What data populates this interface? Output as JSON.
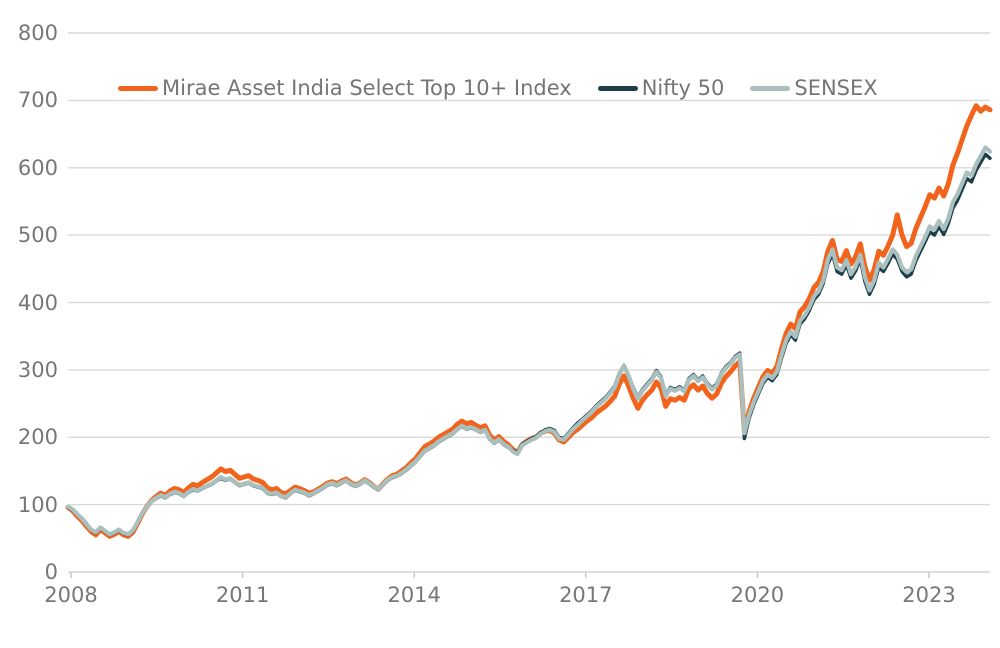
{
  "chart_data": {
    "type": "line",
    "title": "",
    "xlabel": "",
    "ylabel": "",
    "x_start_year": 2008,
    "x_interval": "monthly",
    "x_tick_years": [
      "2008",
      "2011",
      "2014",
      "2017",
      "2020",
      "2023"
    ],
    "y_ticks": [
      "0",
      "100",
      "200",
      "300",
      "400",
      "500",
      "600",
      "700",
      "800"
    ],
    "ylim": [
      0,
      800
    ],
    "grid": "horizontal-only",
    "legend_position": "top-left",
    "colors": {
      "background": "#ffffff",
      "gridline": "#d9d9d9",
      "axis_line": "#d4d4d4",
      "tick_mark": "#c9c9c9",
      "axis_label_text": "#777777",
      "legend_text": "#757575"
    },
    "series": [
      {
        "name": "Mirae Asset India Select Top 10+ Index",
        "color": "#F2641C",
        "stroke_width": 5,
        "values": [
          96,
          91,
          83,
          76,
          68,
          60,
          55,
          63,
          58,
          53,
          56,
          60,
          55,
          53,
          59,
          72,
          86,
          97,
          106,
          112,
          117,
          114,
          120,
          124,
          122,
          118,
          125,
          130,
          128,
          133,
          137,
          141,
          147,
          153,
          149,
          151,
          145,
          139,
          141,
          143,
          138,
          136,
          133,
          125,
          122,
          124,
          118,
          116,
          121,
          126,
          124,
          121,
          117,
          119,
          123,
          127,
          132,
          134,
          131,
          135,
          138,
          133,
          129,
          132,
          137,
          133,
          127,
          123,
          131,
          138,
          143,
          145,
          150,
          155,
          162,
          168,
          177,
          186,
          190,
          194,
          200,
          204,
          208,
          212,
          219,
          224,
          220,
          222,
          218,
          214,
          217,
          203,
          196,
          201,
          194,
          189,
          182,
          177,
          189,
          194,
          198,
          200,
          206,
          209,
          210,
          206,
          196,
          193,
          200,
          207,
          212,
          218,
          224,
          229,
          236,
          241,
          246,
          253,
          261,
          279,
          291,
          276,
          258,
          243,
          255,
          263,
          270,
          282,
          273,
          246,
          257,
          255,
          259,
          255,
          272,
          278,
          270,
          276,
          265,
          258,
          264,
          280,
          290,
          297,
          306,
          312,
          210,
          238,
          258,
          274,
          290,
          299,
          295,
          305,
          331,
          354,
          368,
          361,
          386,
          394,
          406,
          422,
          430,
          446,
          476,
          492,
          464,
          461,
          477,
          457,
          468,
          487,
          453,
          433,
          449,
          476,
          470,
          484,
          500,
          530,
          500,
          483,
          488,
          510,
          526,
          542,
          560,
          555,
          570,
          558,
          576,
          604,
          622,
          642,
          662,
          678,
          692,
          684,
          690,
          686
        ]
      },
      {
        "name": "Nifty 50",
        "color": "#1C3D4A",
        "stroke_width": 3.4,
        "values": [
          96,
          92,
          85,
          80,
          72,
          62,
          58,
          65,
          60,
          55,
          58,
          62,
          57,
          55,
          61,
          73,
          86,
          96,
          104,
          109,
          113,
          110,
          115,
          118,
          116,
          112,
          118,
          122,
          120,
          124,
          127,
          130,
          135,
          139,
          136,
          138,
          133,
          128,
          130,
          132,
          128,
          126,
          124,
          117,
          115,
          117,
          112,
          110,
          116,
          121,
          119,
          117,
          113,
          116,
          120,
          124,
          129,
          131,
          128,
          132,
          135,
          130,
          127,
          130,
          135,
          131,
          126,
          122,
          129,
          136,
          140,
          142,
          146,
          151,
          157,
          163,
          171,
          179,
          183,
          187,
          193,
          197,
          201,
          205,
          211,
          216,
          212,
          214,
          211,
          207,
          210,
          197,
          191,
          196,
          189,
          185,
          181,
          177,
          190,
          194,
          198,
          201,
          207,
          211,
          213,
          210,
          200,
          198,
          206,
          214,
          221,
          227,
          233,
          239,
          247,
          253,
          259,
          267,
          276,
          295,
          307,
          292,
          274,
          259,
          271,
          279,
          287,
          299,
          290,
          263,
          274,
          271,
          275,
          270,
          287,
          293,
          285,
          291,
          280,
          273,
          279,
          295,
          305,
          311,
          320,
          325,
          198,
          228,
          248,
          264,
          280,
          289,
          284,
          293,
          317,
          339,
          352,
          344,
          368,
          376,
          388,
          404,
          412,
          428,
          457,
          472,
          446,
          442,
          456,
          436,
          447,
          464,
          431,
          412,
          427,
          452,
          446,
          458,
          472,
          464,
          446,
          438,
          442,
          462,
          476,
          490,
          505,
          500,
          513,
          501,
          517,
          540,
          552,
          568,
          584,
          579,
          596,
          608,
          620,
          614
        ]
      },
      {
        "name": "SENSEX",
        "color": "#A9C0BE",
        "stroke_width": 4.2,
        "values": [
          97,
          93,
          86,
          79,
          71,
          63,
          59,
          66,
          61,
          56,
          59,
          63,
          58,
          56,
          62,
          74,
          87,
          97,
          105,
          110,
          114,
          111,
          116,
          119,
          117,
          113,
          119,
          123,
          121,
          125,
          128,
          131,
          136,
          141,
          137,
          139,
          134,
          129,
          131,
          133,
          129,
          127,
          125,
          118,
          116,
          118,
          113,
          111,
          117,
          122,
          120,
          118,
          114,
          117,
          121,
          125,
          130,
          132,
          129,
          133,
          136,
          131,
          128,
          131,
          136,
          132,
          127,
          123,
          130,
          137,
          141,
          143,
          147,
          152,
          158,
          164,
          172,
          180,
          184,
          188,
          194,
          198,
          202,
          206,
          212,
          217,
          213,
          215,
          212,
          208,
          211,
          198,
          192,
          197,
          190,
          186,
          179,
          175,
          188,
          192,
          196,
          199,
          205,
          209,
          211,
          208,
          198,
          196,
          204,
          212,
          218,
          225,
          231,
          237,
          245,
          251,
          257,
          265,
          274,
          293,
          306,
          291,
          272,
          257,
          269,
          277,
          285,
          297,
          288,
          261,
          272,
          269,
          273,
          268,
          285,
          291,
          283,
          289,
          278,
          271,
          277,
          293,
          303,
          309,
          318,
          323,
          206,
          233,
          252,
          268,
          284,
          293,
          288,
          297,
          322,
          344,
          357,
          349,
          373,
          381,
          393,
          409,
          417,
          433,
          463,
          479,
          452,
          448,
          463,
          442,
          453,
          471,
          438,
          418,
          433,
          459,
          452,
          465,
          479,
          471,
          452,
          445,
          449,
          469,
          483,
          497,
          513,
          508,
          521,
          509,
          525,
          549,
          561,
          577,
          593,
          588,
          605,
          617,
          630,
          624
        ]
      }
    ]
  }
}
